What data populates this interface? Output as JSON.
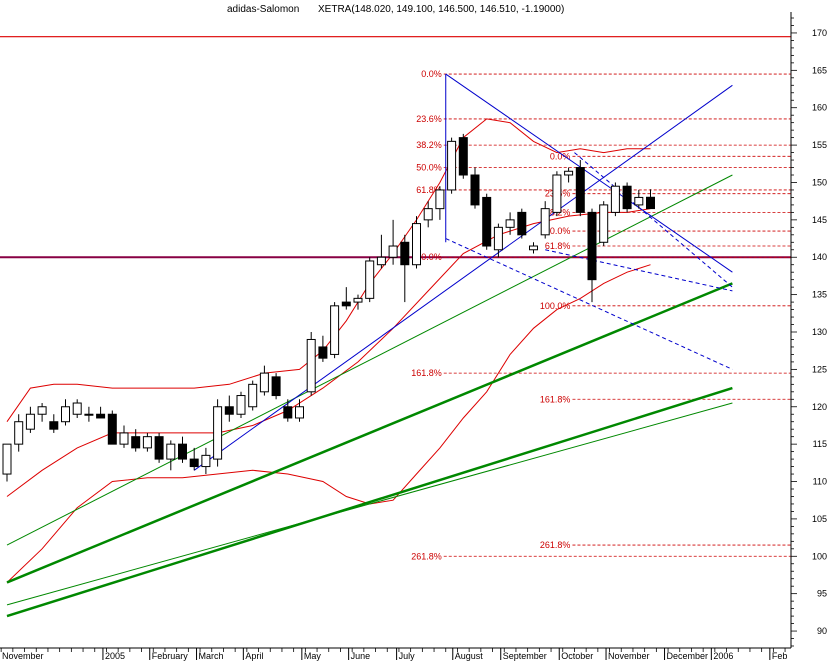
{
  "chart_data": {
    "type": "candlestick",
    "title": "adidas-Salomon",
    "subtitle": "XETRA(148.020, 149.100, 146.500, 146.510, -1.19000)",
    "ylim": [
      88,
      172
    ],
    "y_ticks": [
      90,
      95,
      100,
      105,
      110,
      115,
      120,
      125,
      130,
      135,
      140,
      145,
      150,
      155,
      160,
      165,
      170
    ],
    "x_tick_labels": [
      "November",
      "2005",
      "February",
      "March",
      "April",
      "May",
      "June",
      "July",
      "August",
      "September",
      "October",
      "November",
      "December",
      "2006",
      "Feb"
    ],
    "grid": false,
    "candles": [
      {
        "o": 111.0,
        "h": 115.0,
        "l": 110.0,
        "c": 115.0
      },
      {
        "o": 115.0,
        "h": 119.0,
        "l": 114.0,
        "c": 118.0
      },
      {
        "o": 117.0,
        "h": 120.0,
        "l": 116.5,
        "c": 119.0
      },
      {
        "o": 119.0,
        "h": 120.5,
        "l": 118.0,
        "c": 120.0
      },
      {
        "o": 118.0,
        "h": 119.0,
        "l": 116.5,
        "c": 117.0
      },
      {
        "o": 118.0,
        "h": 121.0,
        "l": 117.5,
        "c": 120.0
      },
      {
        "o": 119.0,
        "h": 121.0,
        "l": 118.5,
        "c": 120.5
      },
      {
        "o": 119.0,
        "h": 120.0,
        "l": 118.0,
        "c": 119.0
      },
      {
        "o": 119.0,
        "h": 120.0,
        "l": 118.5,
        "c": 118.5
      },
      {
        "o": 119.0,
        "h": 119.5,
        "l": 115.0,
        "c": 115.0
      },
      {
        "o": 115.0,
        "h": 117.5,
        "l": 114.5,
        "c": 116.5
      },
      {
        "o": 116.0,
        "h": 117.0,
        "l": 114.0,
        "c": 114.5
      },
      {
        "o": 114.5,
        "h": 116.5,
        "l": 114.0,
        "c": 116.0
      },
      {
        "o": 116.0,
        "h": 116.5,
        "l": 112.5,
        "c": 113.0
      },
      {
        "o": 113.0,
        "h": 115.5,
        "l": 111.5,
        "c": 115.0
      },
      {
        "o": 115.0,
        "h": 116.0,
        "l": 112.5,
        "c": 113.0
      },
      {
        "o": 113.0,
        "h": 114.5,
        "l": 111.5,
        "c": 112.0
      },
      {
        "o": 112.0,
        "h": 114.5,
        "l": 111.0,
        "c": 113.5
      },
      {
        "o": 113.0,
        "h": 121.0,
        "l": 112.0,
        "c": 120.0
      },
      {
        "o": 120.0,
        "h": 121.5,
        "l": 118.0,
        "c": 119.0
      },
      {
        "o": 119.0,
        "h": 122.0,
        "l": 118.5,
        "c": 121.5
      },
      {
        "o": 120.0,
        "h": 123.5,
        "l": 119.5,
        "c": 123.0
      },
      {
        "o": 122.0,
        "h": 125.5,
        "l": 121.5,
        "c": 124.5
      },
      {
        "o": 124.0,
        "h": 124.5,
        "l": 121.0,
        "c": 121.5
      },
      {
        "o": 120.0,
        "h": 121.0,
        "l": 118.0,
        "c": 118.5
      },
      {
        "o": 118.5,
        "h": 121.0,
        "l": 118.0,
        "c": 120.0
      },
      {
        "o": 122.0,
        "h": 130.0,
        "l": 121.5,
        "c": 129.0
      },
      {
        "o": 128.0,
        "h": 129.5,
        "l": 126.0,
        "c": 126.5
      },
      {
        "o": 127.0,
        "h": 134.0,
        "l": 126.5,
        "c": 133.5
      },
      {
        "o": 134.0,
        "h": 136.0,
        "l": 133.0,
        "c": 133.5
      },
      {
        "o": 134.0,
        "h": 135.0,
        "l": 133.0,
        "c": 134.5
      },
      {
        "o": 134.5,
        "h": 140.0,
        "l": 134.0,
        "c": 139.5
      },
      {
        "o": 139.0,
        "h": 143.0,
        "l": 138.5,
        "c": 140.0
      },
      {
        "o": 140.0,
        "h": 145.0,
        "l": 139.0,
        "c": 141.5
      },
      {
        "o": 142.0,
        "h": 143.0,
        "l": 134.0,
        "c": 139.0
      },
      {
        "o": 139.0,
        "h": 145.5,
        "l": 138.5,
        "c": 144.5
      },
      {
        "o": 145.0,
        "h": 147.5,
        "l": 144.0,
        "c": 146.5
      },
      {
        "o": 146.5,
        "h": 149.5,
        "l": 145.0,
        "c": 149.0
      },
      {
        "o": 149.0,
        "h": 156.0,
        "l": 148.5,
        "c": 155.5
      },
      {
        "o": 156.0,
        "h": 156.5,
        "l": 150.5,
        "c": 151.0
      },
      {
        "o": 151.0,
        "h": 152.0,
        "l": 146.5,
        "c": 147.0
      },
      {
        "o": 148.0,
        "h": 148.5,
        "l": 141.0,
        "c": 141.5
      },
      {
        "o": 141.0,
        "h": 144.5,
        "l": 140.0,
        "c": 144.0
      },
      {
        "o": 144.0,
        "h": 146.0,
        "l": 143.0,
        "c": 145.0
      },
      {
        "o": 146.0,
        "h": 146.5,
        "l": 142.5,
        "c": 143.0
      },
      {
        "o": 141.0,
        "h": 142.0,
        "l": 140.5,
        "c": 141.5
      },
      {
        "o": 143.0,
        "h": 147.5,
        "l": 142.5,
        "c": 146.5
      },
      {
        "o": 146.0,
        "h": 151.5,
        "l": 145.5,
        "c": 151.0
      },
      {
        "o": 151.0,
        "h": 152.0,
        "l": 150.0,
        "c": 151.5
      },
      {
        "o": 152.0,
        "h": 153.0,
        "l": 145.5,
        "c": 146.0
      },
      {
        "o": 146.0,
        "h": 146.5,
        "l": 134.0,
        "c": 137.0
      },
      {
        "o": 142.0,
        "h": 147.5,
        "l": 141.5,
        "c": 147.0
      },
      {
        "o": 146.0,
        "h": 150.0,
        "l": 145.5,
        "c": 149.5
      },
      {
        "o": 149.5,
        "h": 150.0,
        "l": 146.0,
        "c": 146.5
      },
      {
        "o": 147.0,
        "h": 149.0,
        "l": 146.5,
        "c": 148.0
      },
      {
        "o": 148.02,
        "h": 149.1,
        "l": 146.5,
        "c": 146.51
      }
    ],
    "bollinger_upper": [
      {
        "i": 0,
        "v": 118.0
      },
      {
        "i": 2,
        "v": 122.5
      },
      {
        "i": 4,
        "v": 123.0
      },
      {
        "i": 6,
        "v": 123.0
      },
      {
        "i": 9,
        "v": 122.5
      },
      {
        "i": 12,
        "v": 122.5
      },
      {
        "i": 16,
        "v": 122.5
      },
      {
        "i": 19,
        "v": 123.0
      },
      {
        "i": 22,
        "v": 124.5
      },
      {
        "i": 25,
        "v": 125.0
      },
      {
        "i": 27,
        "v": 127.5
      },
      {
        "i": 29,
        "v": 131.5
      },
      {
        "i": 31,
        "v": 136.5
      },
      {
        "i": 33,
        "v": 140.5
      },
      {
        "i": 35,
        "v": 145.0
      },
      {
        "i": 37,
        "v": 150.0
      },
      {
        "i": 39,
        "v": 156.0
      },
      {
        "i": 41,
        "v": 158.5
      },
      {
        "i": 43,
        "v": 158.0
      },
      {
        "i": 45,
        "v": 155.5
      },
      {
        "i": 47,
        "v": 154.0
      },
      {
        "i": 49,
        "v": 154.5
      },
      {
        "i": 51,
        "v": 154.0
      },
      {
        "i": 53,
        "v": 154.5
      },
      {
        "i": 55,
        "v": 154.5
      }
    ],
    "bollinger_middle": [
      {
        "i": 0,
        "v": 108.0
      },
      {
        "i": 3,
        "v": 111.5
      },
      {
        "i": 6,
        "v": 114.5
      },
      {
        "i": 9,
        "v": 116.5
      },
      {
        "i": 12,
        "v": 116.5
      },
      {
        "i": 15,
        "v": 116.5
      },
      {
        "i": 18,
        "v": 116.5
      },
      {
        "i": 21,
        "v": 117.5
      },
      {
        "i": 24,
        "v": 119.5
      },
      {
        "i": 27,
        "v": 122.5
      },
      {
        "i": 30,
        "v": 126.0
      },
      {
        "i": 33,
        "v": 130.5
      },
      {
        "i": 36,
        "v": 135.5
      },
      {
        "i": 39,
        "v": 140.5
      },
      {
        "i": 42,
        "v": 143.0
      },
      {
        "i": 45,
        "v": 144.5
      },
      {
        "i": 48,
        "v": 145.5
      },
      {
        "i": 51,
        "v": 146.0
      },
      {
        "i": 53,
        "v": 146.0
      },
      {
        "i": 55,
        "v": 146.5
      }
    ],
    "bollinger_lower": [
      {
        "i": 0,
        "v": 96.5
      },
      {
        "i": 3,
        "v": 101.0
      },
      {
        "i": 6,
        "v": 106.5
      },
      {
        "i": 9,
        "v": 110.0
      },
      {
        "i": 12,
        "v": 110.5
      },
      {
        "i": 15,
        "v": 110.5
      },
      {
        "i": 18,
        "v": 111.0
      },
      {
        "i": 21,
        "v": 111.5
      },
      {
        "i": 24,
        "v": 111.0
      },
      {
        "i": 27,
        "v": 110.0
      },
      {
        "i": 29,
        "v": 108.0
      },
      {
        "i": 31,
        "v": 107.0
      },
      {
        "i": 33,
        "v": 107.5
      },
      {
        "i": 35,
        "v": 111.0
      },
      {
        "i": 37,
        "v": 114.5
      },
      {
        "i": 39,
        "v": 118.5
      },
      {
        "i": 41,
        "v": 122.0
      },
      {
        "i": 43,
        "v": 127.0
      },
      {
        "i": 45,
        "v": 130.5
      },
      {
        "i": 47,
        "v": 133.0
      },
      {
        "i": 49,
        "v": 134.5
      },
      {
        "i": 51,
        "v": 136.5
      },
      {
        "i": 53,
        "v": 138.0
      },
      {
        "i": 55,
        "v": 139.0
      }
    ],
    "fib_levels": [
      {
        "label": "0.0%",
        "v": 164.5,
        "ix": 37.5
      },
      {
        "label": "23.6%",
        "v": 158.5,
        "ix": 37.5
      },
      {
        "label": "38.2%",
        "v": 155.0,
        "ix": 37.5
      },
      {
        "label": "50.0%",
        "v": 152.0,
        "ix": 37.5
      },
      {
        "label": "61.8%",
        "v": 149.0,
        "ix": 37.5
      },
      {
        "label": "100.0%",
        "v": 140.0,
        "ix": 37.5
      },
      {
        "label": "161.8%",
        "v": 124.5,
        "ix": 37.5
      },
      {
        "label": "261.8%",
        "v": 100.0,
        "ix": 37.5
      },
      {
        "label": "0.0%",
        "v": 153.5,
        "ix": 48.5
      },
      {
        "label": "23.6%",
        "v": 148.5,
        "ix": 48.5
      },
      {
        "label": "38.2%",
        "v": 146.0,
        "ix": 48.5
      },
      {
        "label": "50.0%",
        "v": 143.5,
        "ix": 48.5
      },
      {
        "label": "61.8%",
        "v": 141.5,
        "ix": 48.5
      },
      {
        "label": "100.0%",
        "v": 133.5,
        "ix": 48.5
      },
      {
        "label": "161.8%",
        "v": 121.0,
        "ix": 48.5
      },
      {
        "label": "261.8%",
        "v": 101.5,
        "ix": 48.5
      }
    ],
    "horizontal_lines": [
      {
        "v": 169.5,
        "color": "#dd0000"
      },
      {
        "v": 140.0,
        "color": "#0000aa"
      },
      {
        "v": 140.0,
        "color": "#880044"
      }
    ],
    "trend_lines": [
      {
        "from": [
          0,
          96.5
        ],
        "to": [
          62,
          136.5
        ],
        "color": "#008800",
        "width": 2.5
      },
      {
        "from": [
          0,
          92.0
        ],
        "to": [
          62,
          122.5
        ],
        "color": "#008800",
        "width": 2.5
      },
      {
        "from": [
          0,
          93.5
        ],
        "to": [
          62,
          120.5
        ],
        "color": "#008800",
        "width": 1
      },
      {
        "from": [
          0,
          101.5
        ],
        "to": [
          62,
          151.0
        ],
        "color": "#008800",
        "width": 1
      },
      {
        "from": [
          16,
          111.5
        ],
        "to": [
          62,
          163.0
        ],
        "color": "#0000cc",
        "width": 1
      },
      {
        "from": [
          37.5,
          164.5
        ],
        "to": [
          62,
          138.0
        ],
        "color": "#0000cc",
        "width": 1
      },
      {
        "from": [
          46,
          141.0
        ],
        "to": [
          62,
          135.5
        ],
        "color": "#0000cc",
        "width": 1,
        "dash": true
      },
      {
        "from": [
          37.5,
          142.5
        ],
        "to": [
          62,
          125.0
        ],
        "color": "#0000cc",
        "width": 1,
        "dash": true
      },
      {
        "from": [
          48.5,
          154.0
        ],
        "to": [
          62,
          136.0
        ],
        "color": "#0000cc",
        "width": 1,
        "dash": true
      }
    ],
    "vertical_lines": [
      {
        "i": 37.5,
        "from": 142.0,
        "to": 164.5,
        "color": "#0000cc"
      }
    ]
  }
}
